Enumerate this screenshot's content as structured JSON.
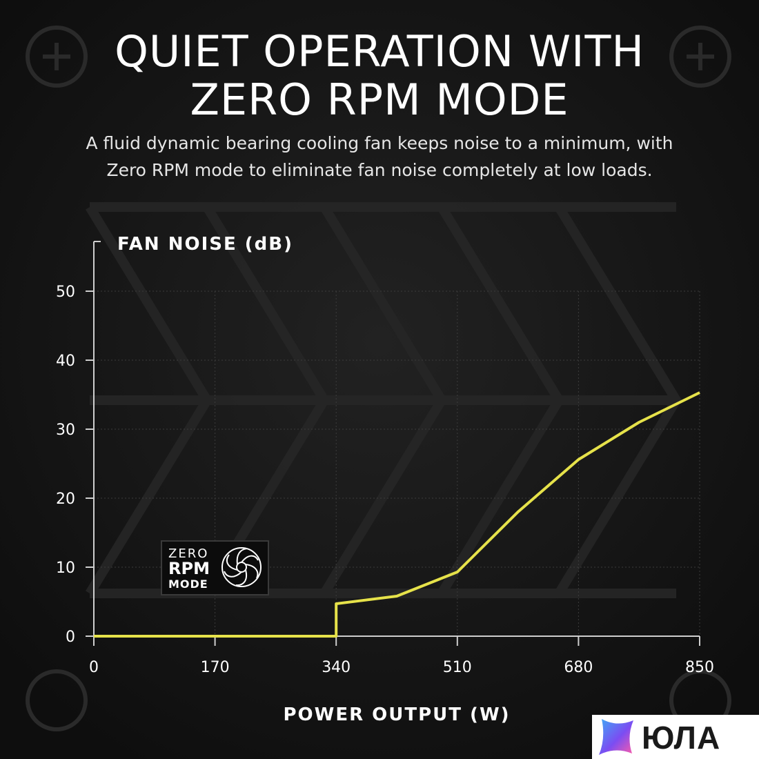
{
  "header": {
    "title_line1": "QUIET OPERATION WITH",
    "title_line2": "ZERO RPM MODE",
    "subtitle_line1": "A fluid dynamic bearing cooling fan keeps noise to a minimum, with",
    "subtitle_line2": "Zero RPM mode to eliminate fan noise completely at low loads."
  },
  "badge": {
    "line1": "ZERO",
    "line2": "RPM",
    "line3": "MODE",
    "icon": "fan-icon"
  },
  "watermark": {
    "text": "ЮЛА",
    "icon": "star-logo-icon",
    "colors": [
      "#3fa9f5",
      "#7b4df2",
      "#ff5ca8"
    ]
  },
  "chart_data": {
    "type": "line",
    "ylabel": "FAN NOISE (dB)",
    "xlabel": "POWER OUTPUT (W)",
    "xlim": [
      0,
      850
    ],
    "ylim": [
      0,
      50
    ],
    "x_ticks": [
      0,
      170,
      340,
      510,
      680,
      850
    ],
    "y_ticks": [
      0,
      10,
      20,
      30,
      40,
      50
    ],
    "grid": true,
    "line_color": "#e6e24a",
    "series": [
      {
        "points": [
          [
            0,
            0
          ],
          [
            340,
            0
          ],
          [
            340,
            4.7
          ],
          [
            425,
            5.8
          ],
          [
            510,
            9.3
          ],
          [
            595,
            18
          ],
          [
            680,
            25.6
          ],
          [
            765,
            31
          ],
          [
            850,
            35.3
          ]
        ]
      }
    ]
  }
}
